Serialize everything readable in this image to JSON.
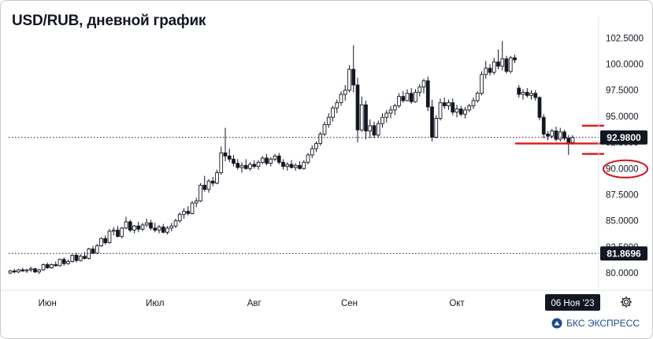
{
  "title": "USD/RUB, дневной график",
  "brand": "БКС ЭКСПРЕСС",
  "colors": {
    "up_body": "#ffffff",
    "down_body": "#131722",
    "candle_outline": "#131722",
    "support_line": "#e3161b",
    "highlight_circle": "#d3111a",
    "price_tag_bg": "#131722",
    "price_tag_text": "#ffffff",
    "axis_text": "#131722",
    "dotted_line": "#131722",
    "brand": "#1a4a8f"
  },
  "icons": [
    "gear-icon",
    "bcs-logo-icon"
  ],
  "chart_data": {
    "type": "candlestick",
    "title": "USD/RUB, дневной график",
    "x_labels": [
      "Июн",
      "Июл",
      "Авг",
      "Сен",
      "Окт"
    ],
    "crosshair_date": "06 Ноя '23",
    "y_ticks": [
      80.0,
      82.5,
      85.0,
      87.5,
      90.0,
      92.5,
      95.0,
      97.5,
      100.0,
      102.5
    ],
    "y_tick_labels": [
      "80.0000",
      "82.5000",
      "85.0000",
      "87.5000",
      "90.0000",
      "92.5000",
      "95.0000",
      "97.5000",
      "100.0000",
      "102.5000"
    ],
    "ylim": [
      78.5,
      103.8
    ],
    "price_tags": [
      {
        "label": "92.9800",
        "value": 92.98,
        "style": "dark"
      },
      {
        "label": "81.8696",
        "value": 81.8696,
        "style": "dark"
      }
    ],
    "dotted_levels": [
      92.98,
      81.8696
    ],
    "highlighted_tick": "90.0000",
    "support_lines": [
      {
        "value": 92.4,
        "from_index": 124,
        "to_index": 239
      },
      {
        "value": 94.1,
        "from_index": 230,
        "to_index": 243
      },
      {
        "value": 91.4,
        "from_index": 234,
        "to_index": 243
      }
    ],
    "candles": [
      [
        80.0,
        80.3,
        79.9,
        80.2
      ],
      [
        80.2,
        80.4,
        80.0,
        80.1
      ],
      [
        80.1,
        80.4,
        80.0,
        80.3
      ],
      [
        80.3,
        80.5,
        80.1,
        80.2
      ],
      [
        80.2,
        80.4,
        80.0,
        80.3
      ],
      [
        80.3,
        80.6,
        80.1,
        80.4
      ],
      [
        80.4,
        80.5,
        80.0,
        80.1
      ],
      [
        80.1,
        80.4,
        79.9,
        80.3
      ],
      [
        80.3,
        80.9,
        80.2,
        80.8
      ],
      [
        80.8,
        81.0,
        80.4,
        80.5
      ],
      [
        80.5,
        80.9,
        80.4,
        80.8
      ],
      [
        80.8,
        81.1,
        80.6,
        80.7
      ],
      [
        80.7,
        81.4,
        80.6,
        81.3
      ],
      [
        81.3,
        81.5,
        80.7,
        80.9
      ],
      [
        80.9,
        81.3,
        80.8,
        81.1
      ],
      [
        81.1,
        81.8,
        81.0,
        81.7
      ],
      [
        81.7,
        81.9,
        81.0,
        81.2
      ],
      [
        81.2,
        81.8,
        81.1,
        81.6
      ],
      [
        81.6,
        82.0,
        81.3,
        81.4
      ],
      [
        81.4,
        82.4,
        81.3,
        82.3
      ],
      [
        82.3,
        82.6,
        81.8,
        81.9
      ],
      [
        81.9,
        82.8,
        81.8,
        82.6
      ],
      [
        82.6,
        83.4,
        82.5,
        83.3
      ],
      [
        83.3,
        83.6,
        82.7,
        82.9
      ],
      [
        82.9,
        84.2,
        82.8,
        84.0
      ],
      [
        84.0,
        84.4,
        83.6,
        84.1
      ],
      [
        84.1,
        84.5,
        83.4,
        83.5
      ],
      [
        83.5,
        84.4,
        83.3,
        84.3
      ],
      [
        84.3,
        85.4,
        84.2,
        84.9
      ],
      [
        84.9,
        85.1,
        83.9,
        84.1
      ],
      [
        84.1,
        84.6,
        83.8,
        84.5
      ],
      [
        84.5,
        84.9,
        83.9,
        84.2
      ],
      [
        84.2,
        84.8,
        84.0,
        84.6
      ],
      [
        84.6,
        85.2,
        84.4,
        84.8
      ],
      [
        84.8,
        85.1,
        84.1,
        84.3
      ],
      [
        84.3,
        84.8,
        83.9,
        84.1
      ],
      [
        84.1,
        84.6,
        83.8,
        84.4
      ],
      [
        84.4,
        84.7,
        83.8,
        83.9
      ],
      [
        83.9,
        84.5,
        83.7,
        84.3
      ],
      [
        84.3,
        84.8,
        84.0,
        84.5
      ],
      [
        84.5,
        85.2,
        84.3,
        85.0
      ],
      [
        85.0,
        85.8,
        84.8,
        85.6
      ],
      [
        85.6,
        86.2,
        85.2,
        85.9
      ],
      [
        85.9,
        86.4,
        85.5,
        85.7
      ],
      [
        85.7,
        86.9,
        85.6,
        86.7
      ],
      [
        86.7,
        87.2,
        86.3,
        86.9
      ],
      [
        86.9,
        88.6,
        86.8,
        88.4
      ],
      [
        88.4,
        89.3,
        87.8,
        88.0
      ],
      [
        88.0,
        89.0,
        87.7,
        88.8
      ],
      [
        88.8,
        89.2,
        88.3,
        88.6
      ],
      [
        88.6,
        89.9,
        88.5,
        89.6
      ],
      [
        89.6,
        92.1,
        89.4,
        91.5
      ],
      [
        91.5,
        93.9,
        90.7,
        91.2
      ],
      [
        91.2,
        91.9,
        90.6,
        90.9
      ],
      [
        90.9,
        91.3,
        90.2,
        90.5
      ],
      [
        90.5,
        90.9,
        89.9,
        90.1
      ],
      [
        90.1,
        90.6,
        89.6,
        90.3
      ],
      [
        90.3,
        90.9,
        89.9,
        90.0
      ],
      [
        90.0,
        90.6,
        89.8,
        90.4
      ],
      [
        90.4,
        90.8,
        90.0,
        90.2
      ],
      [
        90.2,
        90.8,
        89.9,
        90.6
      ],
      [
        90.6,
        91.2,
        90.4,
        91.0
      ],
      [
        91.0,
        91.4,
        90.3,
        90.5
      ],
      [
        90.5,
        91.1,
        90.2,
        90.9
      ],
      [
        90.9,
        91.4,
        90.7,
        91.2
      ],
      [
        91.2,
        91.5,
        90.4,
        90.6
      ],
      [
        90.6,
        90.9,
        89.9,
        90.2
      ],
      [
        90.2,
        90.6,
        89.8,
        90.4
      ],
      [
        90.4,
        90.8,
        90.0,
        90.1
      ],
      [
        90.1,
        90.5,
        89.8,
        90.3
      ],
      [
        90.3,
        90.7,
        89.9,
        90.0
      ],
      [
        90.0,
        90.8,
        89.9,
        90.6
      ],
      [
        90.6,
        91.5,
        90.4,
        91.3
      ],
      [
        91.3,
        92.2,
        91.0,
        91.9
      ],
      [
        91.9,
        92.6,
        91.6,
        92.4
      ],
      [
        92.4,
        93.5,
        92.2,
        93.3
      ],
      [
        93.3,
        94.5,
        93.1,
        94.2
      ],
      [
        94.2,
        95.3,
        93.9,
        94.9
      ],
      [
        94.9,
        96.0,
        94.5,
        95.8
      ],
      [
        95.8,
        96.6,
        95.3,
        96.3
      ],
      [
        96.3,
        97.4,
        96.0,
        97.1
      ],
      [
        97.1,
        98.0,
        96.5,
        97.5
      ],
      [
        97.5,
        99.9,
        97.3,
        99.5
      ],
      [
        99.5,
        101.8,
        97.3,
        98.0
      ],
      [
        98.0,
        98.7,
        92.5,
        93.7
      ],
      [
        93.7,
        96.9,
        93.5,
        96.1
      ],
      [
        96.1,
        96.5,
        92.8,
        93.6
      ],
      [
        93.6,
        94.7,
        92.9,
        94.1
      ],
      [
        94.1,
        94.5,
        92.9,
        93.2
      ],
      [
        93.2,
        94.6,
        93.0,
        94.3
      ],
      [
        94.3,
        95.3,
        93.9,
        94.9
      ],
      [
        94.9,
        95.6,
        94.4,
        95.3
      ],
      [
        95.3,
        96.0,
        94.8,
        95.6
      ],
      [
        95.6,
        96.2,
        95.1,
        96.0
      ],
      [
        96.0,
        97.2,
        95.8,
        96.9
      ],
      [
        96.9,
        97.4,
        96.3,
        96.5
      ],
      [
        96.5,
        97.6,
        96.4,
        97.2
      ],
      [
        97.2,
        97.7,
        96.2,
        96.4
      ],
      [
        96.4,
        97.6,
        96.3,
        97.3
      ],
      [
        97.3,
        98.1,
        96.9,
        97.8
      ],
      [
        97.8,
        98.6,
        97.2,
        98.4
      ],
      [
        98.4,
        98.8,
        95.5,
        95.9
      ],
      [
        95.9,
        96.6,
        92.6,
        93.0
      ],
      [
        93.0,
        95.1,
        92.9,
        94.8
      ],
      [
        94.8,
        96.7,
        94.6,
        96.3
      ],
      [
        96.3,
        96.8,
        95.7,
        96.0
      ],
      [
        96.0,
        96.6,
        95.6,
        96.3
      ],
      [
        96.3,
        96.7,
        95.1,
        95.4
      ],
      [
        95.4,
        96.1,
        94.9,
        95.7
      ],
      [
        95.7,
        96.0,
        95.0,
        95.2
      ],
      [
        95.2,
        95.9,
        94.8,
        95.6
      ],
      [
        95.6,
        96.2,
        95.4,
        96.0
      ],
      [
        96.0,
        96.8,
        95.7,
        96.5
      ],
      [
        96.5,
        97.4,
        96.3,
        97.2
      ],
      [
        97.2,
        99.3,
        97.0,
        99.0
      ],
      [
        99.0,
        100.3,
        98.6,
        99.6
      ],
      [
        99.6,
        100.0,
        98.9,
        99.2
      ],
      [
        99.2,
        100.6,
        99.0,
        100.2
      ],
      [
        100.2,
        101.4,
        99.5,
        99.8
      ],
      [
        99.8,
        102.2,
        99.4,
        100.5
      ],
      [
        100.5,
        100.8,
        99.1,
        99.3
      ],
      [
        99.3,
        100.8,
        99.1,
        100.6
      ],
      [
        100.6,
        100.9,
        100.1,
        100.4
      ],
      [
        97.7,
        98.0,
        96.8,
        97.1
      ],
      [
        97.1,
        97.6,
        96.6,
        97.3
      ],
      [
        97.3,
        97.7,
        96.8,
        97.0
      ],
      [
        97.0,
        97.5,
        96.6,
        97.2
      ],
      [
        97.2,
        97.5,
        96.5,
        96.8
      ],
      [
        96.8,
        96.9,
        94.6,
        94.9
      ],
      [
        94.9,
        95.2,
        92.9,
        93.3
      ],
      [
        93.3,
        93.6,
        92.7,
        93.1
      ],
      [
        93.1,
        93.8,
        92.9,
        93.6
      ],
      [
        93.6,
        94.0,
        92.6,
        92.8
      ],
      [
        92.8,
        93.9,
        92.6,
        93.5
      ],
      [
        93.5,
        93.7,
        92.7,
        92.9
      ],
      [
        92.9,
        93.2,
        91.3,
        92.5
      ],
      [
        92.5,
        93.2,
        92.3,
        92.98
      ]
    ]
  }
}
